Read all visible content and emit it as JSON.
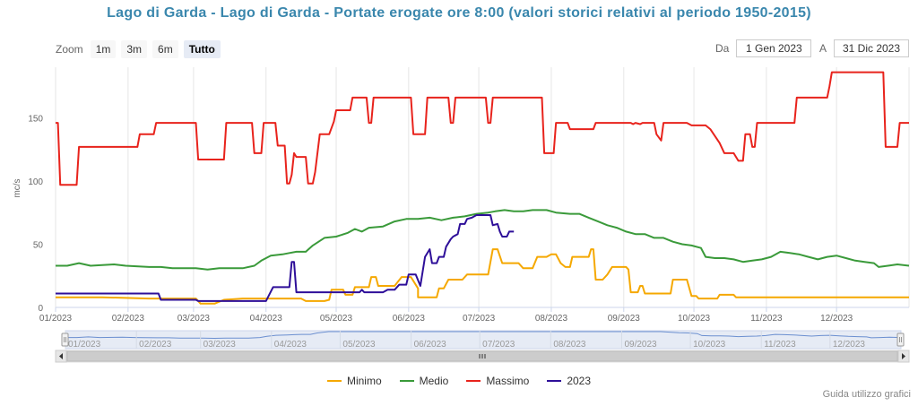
{
  "title": "Lago di Garda - Lago di Garda - Portate erogate ore 8:00 (valori storici relativi al periodo 1950-2015)",
  "zoom": {
    "label": "Zoom",
    "buttons": [
      "1m",
      "3m",
      "6m",
      "Tutto"
    ],
    "active": "Tutto"
  },
  "range": {
    "from_label": "Da",
    "from_value": "1 Gen 2023",
    "to_label": "A",
    "to_value": "31 Dic 2023"
  },
  "guide_link": "Guida utilizzo grafici",
  "colors": {
    "Minimo": "#f5a800",
    "Medio": "#3a9a3a",
    "Massimo": "#e8231c",
    "2023": "#2e0f99"
  },
  "chart_data": {
    "type": "line",
    "ylabel": "mc/s",
    "ylim": [
      0,
      190
    ],
    "yticks": [
      0,
      50,
      100,
      150
    ],
    "xlim": [
      0,
      365
    ],
    "x_ticks": [
      {
        "x": 0,
        "label": "01/2023"
      },
      {
        "x": 31,
        "label": "02/2023"
      },
      {
        "x": 59,
        "label": "03/2023"
      },
      {
        "x": 90,
        "label": "04/2023"
      },
      {
        "x": 120,
        "label": "05/2023"
      },
      {
        "x": 151,
        "label": "06/2023"
      },
      {
        "x": 181,
        "label": "07/2023"
      },
      {
        "x": 212,
        "label": "08/2023"
      },
      {
        "x": 243,
        "label": "09/2023"
      },
      {
        "x": 273,
        "label": "10/2023"
      },
      {
        "x": 304,
        "label": "11/2023"
      },
      {
        "x": 334,
        "label": "12/2023"
      }
    ],
    "series": [
      {
        "name": "Minimo",
        "points": [
          [
            0,
            8
          ],
          [
            20,
            8
          ],
          [
            40,
            7
          ],
          [
            60,
            7
          ],
          [
            62,
            3
          ],
          [
            68,
            3
          ],
          [
            72,
            6
          ],
          [
            80,
            7
          ],
          [
            100,
            7
          ],
          [
            105,
            7
          ],
          [
            107,
            5
          ],
          [
            115,
            5
          ],
          [
            117,
            6
          ],
          [
            118,
            14
          ],
          [
            123,
            14
          ],
          [
            124,
            10
          ],
          [
            127,
            10
          ],
          [
            128,
            16
          ],
          [
            134,
            16
          ],
          [
            135,
            24
          ],
          [
            137,
            24
          ],
          [
            138,
            17
          ],
          [
            145,
            17
          ],
          [
            148,
            24
          ],
          [
            152,
            24
          ],
          [
            155,
            15
          ],
          [
            155,
            8
          ],
          [
            163,
            8
          ],
          [
            164,
            15
          ],
          [
            166,
            15
          ],
          [
            168,
            22
          ],
          [
            174,
            22
          ],
          [
            176,
            26
          ],
          [
            185,
            26
          ],
          [
            187,
            46
          ],
          [
            189,
            46
          ],
          [
            191,
            35
          ],
          [
            198,
            35
          ],
          [
            200,
            31
          ],
          [
            204,
            31
          ],
          [
            206,
            40
          ],
          [
            210,
            40
          ],
          [
            212,
            42
          ],
          [
            214,
            42
          ],
          [
            216,
            35
          ],
          [
            218,
            32
          ],
          [
            220,
            32
          ],
          [
            221,
            40
          ],
          [
            228,
            40
          ],
          [
            229,
            46
          ],
          [
            230,
            46
          ],
          [
            231,
            22
          ],
          [
            234,
            22
          ],
          [
            236,
            26
          ],
          [
            238,
            32
          ],
          [
            240,
            32
          ],
          [
            244,
            32
          ],
          [
            245,
            30
          ],
          [
            246,
            12
          ],
          [
            249,
            12
          ],
          [
            250,
            17
          ],
          [
            251,
            17
          ],
          [
            252,
            11
          ],
          [
            260,
            11
          ],
          [
            263,
            11
          ],
          [
            264,
            22
          ],
          [
            270,
            22
          ],
          [
            272,
            9
          ],
          [
            274,
            9
          ],
          [
            275,
            7
          ],
          [
            283,
            7
          ],
          [
            284,
            10
          ],
          [
            290,
            10
          ],
          [
            291,
            8
          ],
          [
            300,
            8
          ],
          [
            340,
            8
          ],
          [
            365,
            8
          ]
        ]
      },
      {
        "name": "Medio",
        "points": [
          [
            0,
            33
          ],
          [
            5,
            33
          ],
          [
            10,
            35
          ],
          [
            15,
            33
          ],
          [
            25,
            34
          ],
          [
            30,
            33
          ],
          [
            40,
            32
          ],
          [
            45,
            32
          ],
          [
            50,
            31
          ],
          [
            55,
            31
          ],
          [
            60,
            31
          ],
          [
            65,
            30
          ],
          [
            70,
            31
          ],
          [
            75,
            31
          ],
          [
            80,
            31
          ],
          [
            85,
            33
          ],
          [
            88,
            37
          ],
          [
            92,
            41
          ],
          [
            97,
            42
          ],
          [
            100,
            43
          ],
          [
            103,
            44
          ],
          [
            107,
            44
          ],
          [
            110,
            49
          ],
          [
            115,
            55
          ],
          [
            120,
            56
          ],
          [
            125,
            59
          ],
          [
            128,
            62
          ],
          [
            131,
            60
          ],
          [
            134,
            63
          ],
          [
            140,
            64
          ],
          [
            145,
            68
          ],
          [
            150,
            70
          ],
          [
            155,
            70
          ],
          [
            160,
            71
          ],
          [
            165,
            69
          ],
          [
            170,
            71
          ],
          [
            175,
            72
          ],
          [
            180,
            74
          ],
          [
            185,
            75
          ],
          [
            188,
            76
          ],
          [
            192,
            77
          ],
          [
            196,
            76
          ],
          [
            200,
            76
          ],
          [
            204,
            77
          ],
          [
            210,
            77
          ],
          [
            214,
            75
          ],
          [
            220,
            74
          ],
          [
            224,
            74
          ],
          [
            228,
            71
          ],
          [
            232,
            68
          ],
          [
            236,
            65
          ],
          [
            240,
            63
          ],
          [
            244,
            60
          ],
          [
            248,
            58
          ],
          [
            252,
            58
          ],
          [
            256,
            55
          ],
          [
            260,
            55
          ],
          [
            264,
            52
          ],
          [
            268,
            50
          ],
          [
            272,
            49
          ],
          [
            276,
            47
          ],
          [
            278,
            40
          ],
          [
            282,
            39
          ],
          [
            286,
            39
          ],
          [
            290,
            38
          ],
          [
            294,
            36
          ],
          [
            298,
            37
          ],
          [
            302,
            38
          ],
          [
            306,
            40
          ],
          [
            310,
            44
          ],
          [
            314,
            43
          ],
          [
            318,
            42
          ],
          [
            322,
            40
          ],
          [
            326,
            38
          ],
          [
            330,
            40
          ],
          [
            334,
            41
          ],
          [
            338,
            39
          ],
          [
            342,
            37
          ],
          [
            346,
            36
          ],
          [
            350,
            35
          ],
          [
            352,
            32
          ],
          [
            356,
            33
          ],
          [
            360,
            34
          ],
          [
            365,
            33
          ]
        ]
      },
      {
        "name": "Massimo",
        "points": [
          [
            0,
            146
          ],
          [
            1,
            146
          ],
          [
            2,
            97
          ],
          [
            9,
            97
          ],
          [
            10,
            127
          ],
          [
            35,
            127
          ],
          [
            36,
            137
          ],
          [
            42,
            137
          ],
          [
            43,
            146
          ],
          [
            60,
            146
          ],
          [
            61,
            117
          ],
          [
            72,
            117
          ],
          [
            73,
            146
          ],
          [
            84,
            146
          ],
          [
            85,
            122
          ],
          [
            88,
            122
          ],
          [
            89,
            146
          ],
          [
            94,
            146
          ],
          [
            95,
            128
          ],
          [
            98,
            128
          ],
          [
            99,
            98
          ],
          [
            100,
            98
          ],
          [
            101,
            105
          ],
          [
            102,
            122
          ],
          [
            103,
            119
          ],
          [
            107,
            119
          ],
          [
            108,
            98
          ],
          [
            110,
            98
          ],
          [
            111,
            107
          ],
          [
            113,
            137
          ],
          [
            117,
            137
          ],
          [
            119,
            147
          ],
          [
            120,
            156
          ],
          [
            126,
            156
          ],
          [
            127,
            166
          ],
          [
            133,
            166
          ],
          [
            134,
            146
          ],
          [
            135,
            146
          ],
          [
            136,
            166
          ],
          [
            152,
            166
          ],
          [
            153,
            137
          ],
          [
            158,
            137
          ],
          [
            159,
            166
          ],
          [
            168,
            166
          ],
          [
            169,
            146
          ],
          [
            170,
            146
          ],
          [
            171,
            166
          ],
          [
            184,
            166
          ],
          [
            185,
            146
          ],
          [
            186,
            146
          ],
          [
            187,
            166
          ],
          [
            208,
            166
          ],
          [
            209,
            122
          ],
          [
            213,
            122
          ],
          [
            214,
            146
          ],
          [
            219,
            146
          ],
          [
            220,
            141
          ],
          [
            230,
            141
          ],
          [
            231,
            146
          ],
          [
            246,
            146
          ],
          [
            247,
            145
          ],
          [
            248,
            146
          ],
          [
            250,
            145
          ],
          [
            251,
            146
          ],
          [
            256,
            146
          ],
          [
            257,
            137
          ],
          [
            259,
            132
          ],
          [
            260,
            146
          ],
          [
            262,
            146
          ],
          [
            263,
            146
          ],
          [
            270,
            146
          ],
          [
            272,
            144
          ],
          [
            278,
            144
          ],
          [
            280,
            141
          ],
          [
            284,
            130
          ],
          [
            286,
            122
          ],
          [
            290,
            122
          ],
          [
            292,
            116
          ],
          [
            294,
            116
          ],
          [
            295,
            137
          ],
          [
            297,
            137
          ],
          [
            298,
            127
          ],
          [
            299,
            127
          ],
          [
            300,
            146
          ],
          [
            301,
            146
          ],
          [
            302,
            146
          ],
          [
            316,
            146
          ],
          [
            317,
            166
          ],
          [
            330,
            166
          ],
          [
            331,
            175
          ],
          [
            332,
            186
          ],
          [
            345,
            186
          ],
          [
            354,
            186
          ],
          [
            355,
            127
          ],
          [
            360,
            127
          ],
          [
            361,
            146
          ],
          [
            365,
            146
          ]
        ]
      },
      {
        "name": "2023",
        "points": [
          [
            0,
            11
          ],
          [
            20,
            11
          ],
          [
            40,
            11
          ],
          [
            44,
            11
          ],
          [
            45,
            6
          ],
          [
            60,
            6
          ],
          [
            61,
            5
          ],
          [
            70,
            5
          ],
          [
            80,
            5
          ],
          [
            88,
            5
          ],
          [
            90,
            5
          ],
          [
            93,
            16
          ],
          [
            100,
            16
          ],
          [
            101,
            36
          ],
          [
            102,
            36
          ],
          [
            103,
            12
          ],
          [
            110,
            12
          ],
          [
            125,
            12
          ],
          [
            130,
            12
          ],
          [
            131,
            14
          ],
          [
            132,
            12
          ],
          [
            140,
            12
          ],
          [
            142,
            14
          ],
          [
            145,
            14
          ],
          [
            147,
            18
          ],
          [
            150,
            18
          ],
          [
            151,
            26
          ],
          [
            154,
            26
          ],
          [
            156,
            17
          ],
          [
            158,
            40
          ],
          [
            160,
            46
          ],
          [
            161,
            35
          ],
          [
            163,
            35
          ],
          [
            164,
            40
          ],
          [
            166,
            40
          ],
          [
            167,
            48
          ],
          [
            169,
            54
          ],
          [
            170,
            56
          ],
          [
            172,
            58
          ],
          [
            173,
            66
          ],
          [
            175,
            66
          ],
          [
            176,
            70
          ],
          [
            178,
            71
          ],
          [
            180,
            73
          ],
          [
            186,
            73
          ],
          [
            187,
            65
          ],
          [
            189,
            66
          ],
          [
            190,
            60
          ],
          [
            191,
            56
          ],
          [
            193,
            56
          ],
          [
            194,
            60
          ],
          [
            196,
            60
          ]
        ]
      }
    ]
  }
}
